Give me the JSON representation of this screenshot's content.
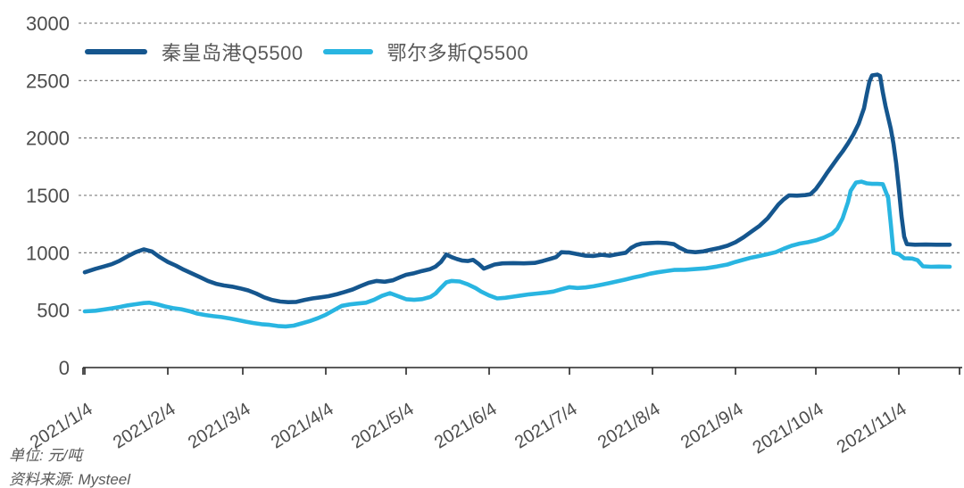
{
  "chart_data": {
    "type": "line",
    "title": "",
    "unit_note": "单位: 元/吨",
    "source_note": "资料来源: Mysteel",
    "ylabel": "",
    "xlabel": "",
    "ylim": [
      0,
      3000
    ],
    "y_ticks": [
      0,
      500,
      1000,
      1500,
      2000,
      2500,
      3000
    ],
    "grid": "dashed-horizontal",
    "legend_position": "top-left",
    "x_ticks": [
      {
        "day": 0,
        "label": "2021/1/4"
      },
      {
        "day": 31,
        "label": "2021/2/4"
      },
      {
        "day": 59,
        "label": "2021/3/4"
      },
      {
        "day": 90,
        "label": "2021/4/4"
      },
      {
        "day": 120,
        "label": "2021/5/4"
      },
      {
        "day": 151,
        "label": "2021/6/4"
      },
      {
        "day": 181,
        "label": "2021/7/4"
      },
      {
        "day": 212,
        "label": "2021/8/4"
      },
      {
        "day": 243,
        "label": "2021/9/4"
      },
      {
        "day": 273,
        "label": "2021/10/4"
      },
      {
        "day": 304,
        "label": "2021/11/4"
      }
    ],
    "x_unit": "days since 2021/1/4",
    "x_range_days": [
      0,
      323
    ],
    "series": [
      {
        "name": "秦皇岛港Q5500",
        "color": "#15568e",
        "points": [
          [
            0,
            830
          ],
          [
            4,
            860
          ],
          [
            7,
            880
          ],
          [
            10,
            900
          ],
          [
            13,
            930
          ],
          [
            16,
            970
          ],
          [
            19,
            1005
          ],
          [
            22,
            1030
          ],
          [
            25,
            1012
          ],
          [
            28,
            962
          ],
          [
            31,
            920
          ],
          [
            34,
            888
          ],
          [
            37,
            852
          ],
          [
            40,
            820
          ],
          [
            43,
            788
          ],
          [
            46,
            755
          ],
          [
            49,
            730
          ],
          [
            52,
            715
          ],
          [
            55,
            705
          ],
          [
            58,
            690
          ],
          [
            61,
            672
          ],
          [
            64,
            645
          ],
          [
            67,
            612
          ],
          [
            70,
            588
          ],
          [
            73,
            575
          ],
          [
            76,
            570
          ],
          [
            79,
            572
          ],
          [
            82,
            588
          ],
          [
            85,
            602
          ],
          [
            88,
            612
          ],
          [
            91,
            622
          ],
          [
            94,
            638
          ],
          [
            97,
            658
          ],
          [
            100,
            680
          ],
          [
            103,
            710
          ],
          [
            106,
            738
          ],
          [
            109,
            755
          ],
          [
            112,
            748
          ],
          [
            115,
            760
          ],
          [
            118,
            790
          ],
          [
            120,
            808
          ],
          [
            123,
            822
          ],
          [
            126,
            842
          ],
          [
            129,
            858
          ],
          [
            131,
            880
          ],
          [
            133,
            920
          ],
          [
            135,
            985
          ],
          [
            137,
            962
          ],
          [
            139,
            945
          ],
          [
            141,
            932
          ],
          [
            143,
            928
          ],
          [
            145,
            938
          ],
          [
            147,
            905
          ],
          [
            149,
            862
          ],
          [
            151,
            880
          ],
          [
            153,
            898
          ],
          [
            156,
            908
          ],
          [
            160,
            910
          ],
          [
            164,
            908
          ],
          [
            168,
            912
          ],
          [
            171,
            928
          ],
          [
            174,
            948
          ],
          [
            176,
            962
          ],
          [
            178,
            1005
          ],
          [
            181,
            1002
          ],
          [
            184,
            988
          ],
          [
            187,
            975
          ],
          [
            190,
            972
          ],
          [
            193,
            982
          ],
          [
            196,
            975
          ],
          [
            199,
            988
          ],
          [
            202,
            1000
          ],
          [
            204,
            1042
          ],
          [
            206,
            1068
          ],
          [
            208,
            1080
          ],
          [
            211,
            1085
          ],
          [
            214,
            1088
          ],
          [
            217,
            1085
          ],
          [
            220,
            1075
          ],
          [
            222,
            1045
          ],
          [
            225,
            1012
          ],
          [
            228,
            1005
          ],
          [
            231,
            1012
          ],
          [
            234,
            1028
          ],
          [
            237,
            1042
          ],
          [
            240,
            1062
          ],
          [
            243,
            1092
          ],
          [
            246,
            1135
          ],
          [
            249,
            1185
          ],
          [
            252,
            1235
          ],
          [
            255,
            1300
          ],
          [
            257,
            1360
          ],
          [
            259,
            1420
          ],
          [
            261,
            1465
          ],
          [
            263,
            1500
          ],
          [
            266,
            1498
          ],
          [
            269,
            1502
          ],
          [
            271,
            1510
          ],
          [
            273,
            1555
          ],
          [
            275,
            1620
          ],
          [
            277,
            1690
          ],
          [
            279,
            1755
          ],
          [
            281,
            1820
          ],
          [
            283,
            1882
          ],
          [
            285,
            1952
          ],
          [
            287,
            2030
          ],
          [
            289,
            2125
          ],
          [
            291,
            2260
          ],
          [
            292,
            2380
          ],
          [
            293,
            2490
          ],
          [
            294,
            2545
          ],
          [
            296,
            2552
          ],
          [
            297,
            2540
          ],
          [
            298,
            2400
          ],
          [
            299,
            2280
          ],
          [
            300,
            2180
          ],
          [
            301,
            2080
          ],
          [
            302,
            1950
          ],
          [
            303,
            1780
          ],
          [
            304,
            1560
          ],
          [
            305,
            1320
          ],
          [
            306,
            1140
          ],
          [
            307,
            1075
          ],
          [
            310,
            1070
          ],
          [
            314,
            1072
          ],
          [
            318,
            1070
          ],
          [
            323,
            1070
          ]
        ]
      },
      {
        "name": "鄂尔多斯Q5500",
        "color": "#29b5e1",
        "points": [
          [
            0,
            490
          ],
          [
            4,
            495
          ],
          [
            7,
            505
          ],
          [
            10,
            515
          ],
          [
            13,
            528
          ],
          [
            16,
            542
          ],
          [
            19,
            552
          ],
          [
            22,
            562
          ],
          [
            24,
            565
          ],
          [
            27,
            552
          ],
          [
            30,
            532
          ],
          [
            33,
            518
          ],
          [
            36,
            508
          ],
          [
            39,
            492
          ],
          [
            42,
            470
          ],
          [
            45,
            458
          ],
          [
            48,
            448
          ],
          [
            51,
            440
          ],
          [
            54,
            428
          ],
          [
            57,
            415
          ],
          [
            60,
            400
          ],
          [
            63,
            388
          ],
          [
            66,
            378
          ],
          [
            69,
            372
          ],
          [
            72,
            362
          ],
          [
            75,
            358
          ],
          [
            78,
            365
          ],
          [
            81,
            385
          ],
          [
            84,
            405
          ],
          [
            87,
            430
          ],
          [
            90,
            460
          ],
          [
            93,
            500
          ],
          [
            96,
            538
          ],
          [
            99,
            550
          ],
          [
            102,
            558
          ],
          [
            105,
            565
          ],
          [
            108,
            590
          ],
          [
            111,
            625
          ],
          [
            114,
            648
          ],
          [
            117,
            622
          ],
          [
            120,
            595
          ],
          [
            123,
            590
          ],
          [
            126,
            596
          ],
          [
            129,
            615
          ],
          [
            131,
            645
          ],
          [
            133,
            695
          ],
          [
            135,
            742
          ],
          [
            137,
            755
          ],
          [
            140,
            750
          ],
          [
            143,
            725
          ],
          [
            146,
            692
          ],
          [
            148,
            662
          ],
          [
            151,
            628
          ],
          [
            154,
            602
          ],
          [
            157,
            608
          ],
          [
            160,
            618
          ],
          [
            163,
            628
          ],
          [
            166,
            638
          ],
          [
            169,
            645
          ],
          [
            172,
            652
          ],
          [
            175,
            662
          ],
          [
            178,
            682
          ],
          [
            181,
            700
          ],
          [
            184,
            693
          ],
          [
            187,
            698
          ],
          [
            190,
            708
          ],
          [
            193,
            722
          ],
          [
            196,
            737
          ],
          [
            199,
            752
          ],
          [
            202,
            768
          ],
          [
            205,
            785
          ],
          [
            208,
            800
          ],
          [
            211,
            818
          ],
          [
            214,
            830
          ],
          [
            217,
            840
          ],
          [
            220,
            850
          ],
          [
            224,
            852
          ],
          [
            228,
            858
          ],
          [
            232,
            865
          ],
          [
            236,
            880
          ],
          [
            240,
            898
          ],
          [
            243,
            920
          ],
          [
            246,
            940
          ],
          [
            249,
            958
          ],
          [
            252,
            972
          ],
          [
            255,
            988
          ],
          [
            258,
            1005
          ],
          [
            261,
            1035
          ],
          [
            264,
            1062
          ],
          [
            267,
            1080
          ],
          [
            270,
            1092
          ],
          [
            273,
            1108
          ],
          [
            276,
            1132
          ],
          [
            279,
            1165
          ],
          [
            281,
            1210
          ],
          [
            283,
            1300
          ],
          [
            285,
            1440
          ],
          [
            286,
            1540
          ],
          [
            288,
            1612
          ],
          [
            290,
            1620
          ],
          [
            292,
            1605
          ],
          [
            294,
            1600
          ],
          [
            296,
            1600
          ],
          [
            298,
            1598
          ],
          [
            300,
            1480
          ],
          [
            301,
            1250
          ],
          [
            302,
            1000
          ],
          [
            304,
            988
          ],
          [
            306,
            952
          ],
          [
            309,
            950
          ],
          [
            311,
            935
          ],
          [
            313,
            882
          ],
          [
            316,
            878
          ],
          [
            319,
            880
          ],
          [
            323,
            878
          ]
        ]
      }
    ]
  },
  "style_colors": {
    "gridline": "#6e6e6e",
    "axis": "#262626",
    "tick_label": "#4d4d4d",
    "legend_text": "#595959",
    "note_text": "#595959"
  }
}
